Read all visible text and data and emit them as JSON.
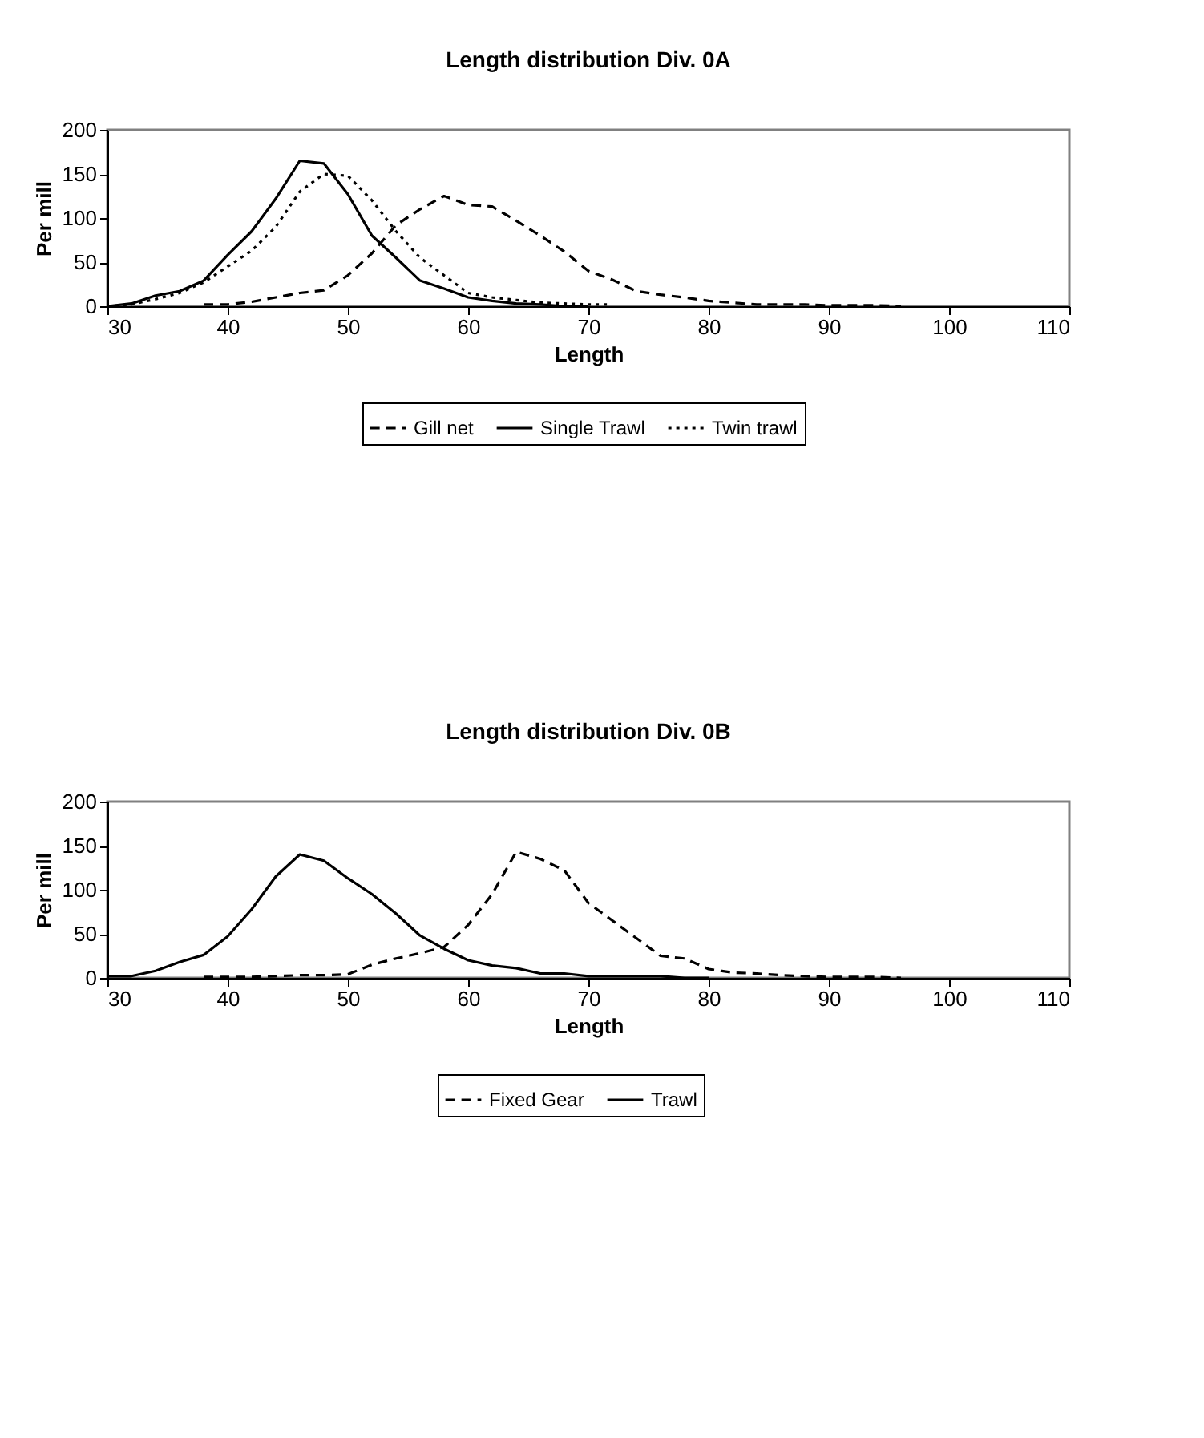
{
  "chart_data": [
    {
      "type": "line",
      "title": "Length distribution Div. 0A",
      "xlabel": "Length",
      "ylabel": "Per mill",
      "xlim": [
        30,
        110
      ],
      "xticks": [
        30,
        40,
        50,
        60,
        70,
        80,
        90,
        100,
        110
      ],
      "ylim": [
        0,
        200
      ],
      "yticks": [
        0,
        50,
        100,
        150,
        200
      ],
      "grid": false,
      "legend": "bottom",
      "marker": "none",
      "series": [
        {
          "name": "Gill net",
          "color": "#000000",
          "line_style": "dashed",
          "x": [
            38,
            40,
            42,
            44,
            46,
            48,
            50,
            52,
            54,
            56,
            58,
            60,
            62,
            64,
            66,
            68,
            70,
            72,
            74,
            76,
            78,
            80,
            82,
            84,
            86,
            88,
            90,
            92,
            94,
            96
          ],
          "values": [
            2,
            2,
            5,
            10,
            15,
            18,
            35,
            60,
            92,
            110,
            125,
            115,
            113,
            97,
            80,
            62,
            40,
            30,
            17,
            13,
            10,
            6,
            4,
            2,
            2,
            2,
            1,
            1,
            1,
            0
          ]
        },
        {
          "name": "Single Trawl",
          "color": "#000000",
          "line_style": "solid",
          "x": [
            30,
            32,
            34,
            36,
            38,
            40,
            42,
            44,
            46,
            48,
            50,
            52,
            54,
            56,
            58,
            60,
            62,
            64,
            66,
            68,
            70
          ],
          "values": [
            0,
            3,
            12,
            17,
            29,
            58,
            85,
            122,
            165,
            162,
            127,
            80,
            55,
            29,
            20,
            10,
            6,
            3,
            2,
            0,
            0
          ]
        },
        {
          "name": "Twin trawl",
          "color": "#000000",
          "line_style": "dotted",
          "x": [
            30,
            32,
            34,
            36,
            38,
            40,
            42,
            44,
            46,
            48,
            50,
            52,
            54,
            56,
            58,
            60,
            62,
            64,
            66,
            68,
            70,
            72
          ],
          "values": [
            0,
            2,
            8,
            15,
            27,
            45,
            63,
            90,
            130,
            150,
            148,
            120,
            85,
            55,
            35,
            15,
            10,
            7,
            4,
            3,
            2,
            2
          ]
        }
      ]
    },
    {
      "type": "line",
      "title": "Length distribution Div. 0B",
      "xlabel": "Length",
      "ylabel": "Per mill",
      "xlim": [
        30,
        110
      ],
      "xticks": [
        30,
        40,
        50,
        60,
        70,
        80,
        90,
        100,
        110
      ],
      "ylim": [
        0,
        200
      ],
      "yticks": [
        0,
        50,
        100,
        150,
        200
      ],
      "grid": false,
      "legend": "bottom",
      "marker": "none",
      "series": [
        {
          "name": "Fixed Gear",
          "color": "#000000",
          "line_style": "dashed",
          "x": [
            38,
            40,
            42,
            44,
            46,
            48,
            50,
            52,
            54,
            56,
            58,
            60,
            62,
            64,
            66,
            68,
            70,
            72,
            74,
            76,
            78,
            80,
            82,
            84,
            86,
            88,
            90,
            92,
            94,
            96
          ],
          "values": [
            1,
            1,
            1,
            2,
            3,
            3,
            4,
            15,
            22,
            28,
            35,
            60,
            95,
            143,
            135,
            122,
            85,
            65,
            45,
            25,
            22,
            10,
            6,
            5,
            3,
            2,
            1,
            1,
            1,
            0
          ]
        },
        {
          "name": "Trawl",
          "color": "#000000",
          "line_style": "solid",
          "x": [
            30,
            32,
            34,
            36,
            38,
            40,
            42,
            44,
            46,
            48,
            50,
            52,
            54,
            56,
            58,
            60,
            62,
            64,
            66,
            68,
            70,
            72,
            74,
            76,
            78,
            80
          ],
          "values": [
            2,
            2,
            8,
            18,
            26,
            47,
            78,
            115,
            140,
            133,
            113,
            95,
            73,
            48,
            33,
            20,
            14,
            11,
            5,
            5,
            2,
            2,
            2,
            2,
            0,
            0
          ]
        }
      ]
    }
  ]
}
